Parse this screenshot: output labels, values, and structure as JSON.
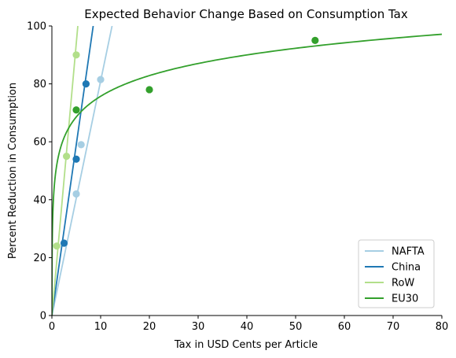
{
  "chart_data": {
    "type": "scatter",
    "title": "Expected Behavior Change Based on Consumption Tax",
    "xlabel": "Tax in USD Cents per Article",
    "ylabel": "Percent Reduction in Consumption",
    "xlim": [
      0,
      80
    ],
    "ylim": [
      0,
      100
    ],
    "xticks": [
      0,
      10,
      20,
      30,
      40,
      50,
      60,
      70,
      80
    ],
    "yticks": [
      0,
      20,
      40,
      60,
      80,
      100
    ],
    "grid": false,
    "legend_position": "bottom-right",
    "series": [
      {
        "name": "NAFTA",
        "color": "#a6cee3",
        "points": [
          [
            5,
            42
          ],
          [
            6,
            59
          ],
          [
            10,
            81.5
          ]
        ],
        "fit": {
          "kind": "linear",
          "slope": 8.1
        }
      },
      {
        "name": "China",
        "color": "#1f78b4",
        "points": [
          [
            2.5,
            25
          ],
          [
            5,
            54
          ],
          [
            7,
            80
          ]
        ],
        "fit": {
          "kind": "linear",
          "slope": 11.8
        }
      },
      {
        "name": "RoW",
        "color": "#b2df8a",
        "points": [
          [
            1,
            24
          ],
          [
            3,
            55
          ],
          [
            5,
            90
          ]
        ],
        "fit": {
          "kind": "linear",
          "slope": 18.8
        }
      },
      {
        "name": "EU30",
        "color": "#33a02c",
        "points": [
          [
            5,
            71
          ],
          [
            20,
            78
          ],
          [
            54,
            95
          ]
        ],
        "fit": {
          "kind": "log",
          "a": 52,
          "b": 10.3
        }
      }
    ]
  }
}
